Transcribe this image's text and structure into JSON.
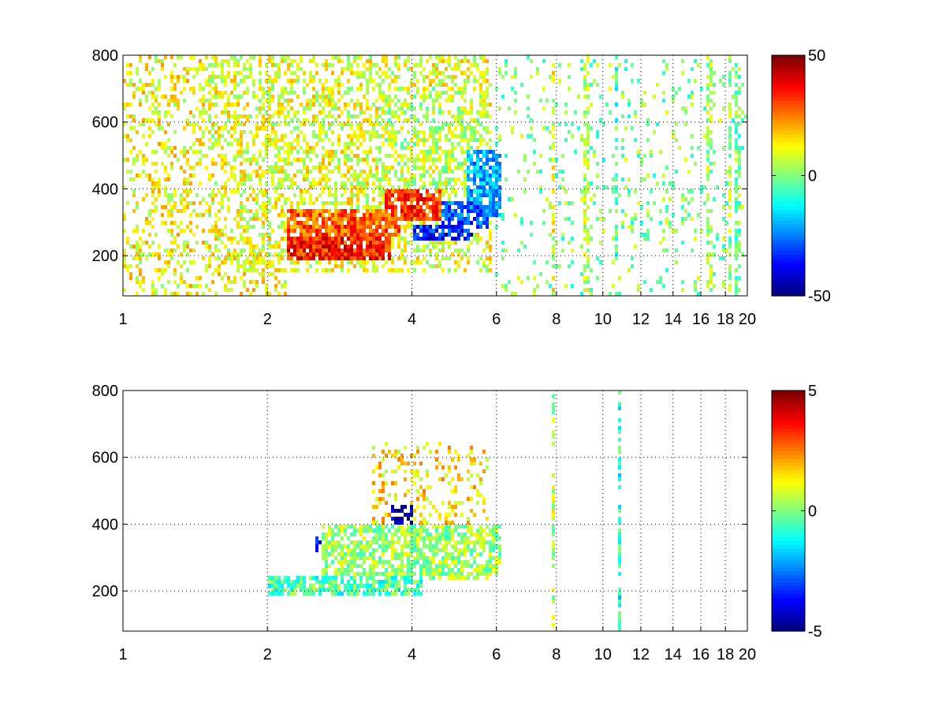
{
  "chart_data": [
    {
      "type": "heatmap",
      "title": "",
      "xlabel": "",
      "ylabel": "",
      "xlim": [
        1,
        20
      ],
      "ylim": [
        80,
        800
      ],
      "x_scale": "log",
      "grid": true,
      "x_ticks": [
        1,
        2,
        4,
        6,
        8,
        10,
        12,
        14,
        16,
        18,
        20
      ],
      "x_tick_labels": [
        "1",
        "2",
        "4",
        "6",
        "8",
        "10",
        "12",
        "14",
        "16",
        "18",
        "20"
      ],
      "y_ticks": [
        200,
        400,
        600,
        800
      ],
      "y_tick_labels": [
        "200",
        "400",
        "600",
        "800"
      ],
      "colorbar": {
        "colormap": "jet",
        "min": -50,
        "max": 50,
        "ticks": [
          -50,
          0,
          50
        ],
        "tick_labels": [
          "-50",
          "0",
          "50"
        ]
      },
      "regions": [
        {
          "x": [
            2.2,
            3.6
          ],
          "y": [
            190,
            260
          ],
          "value": 35,
          "density": 0.9
        },
        {
          "x": [
            2.2,
            3.8
          ],
          "y": [
            260,
            340
          ],
          "value": 28,
          "density": 0.85
        },
        {
          "x": [
            3.5,
            4.6
          ],
          "y": [
            300,
            400
          ],
          "value": 32,
          "density": 0.85
        },
        {
          "x": [
            4.0,
            5.4
          ],
          "y": [
            240,
            290
          ],
          "value": -35,
          "density": 0.85
        },
        {
          "x": [
            4.6,
            5.8
          ],
          "y": [
            280,
            360
          ],
          "value": -28,
          "density": 0.8
        },
        {
          "x": [
            5.2,
            6.1
          ],
          "y": [
            320,
            520
          ],
          "value": -20,
          "density": 0.8
        },
        {
          "x": [
            1.5,
            5.9
          ],
          "y": [
            150,
            800
          ],
          "value": 10,
          "density": 0.45
        },
        {
          "x": [
            3.4,
            5.8
          ],
          "y": [
            400,
            700
          ],
          "value": 6,
          "density": 0.5
        },
        {
          "x": [
            1.0,
            2.2
          ],
          "y": [
            80,
            800
          ],
          "value": 12,
          "density": 0.3
        },
        {
          "x": [
            6.0,
            20.0
          ],
          "y": [
            80,
            800
          ],
          "value": 0,
          "density": 0.1
        }
      ],
      "vertical_stripes": [
        {
          "x": 7.9,
          "width": 0.12,
          "value": 10
        },
        {
          "x": 9.2,
          "width": 0.25,
          "value": 5
        },
        {
          "x": 10.7,
          "width": 0.15,
          "value": -5
        },
        {
          "x": 16.7,
          "width": 0.3,
          "value": 4
        },
        {
          "x": 18.5,
          "width": 0.3,
          "value": 3
        },
        {
          "x": 19.2,
          "width": 0.5,
          "value": -2
        }
      ]
    },
    {
      "type": "heatmap",
      "title": "",
      "xlabel": "",
      "ylabel": "",
      "xlim": [
        1,
        20
      ],
      "ylim": [
        80,
        800
      ],
      "x_scale": "log",
      "grid": true,
      "x_ticks": [
        1,
        2,
        4,
        6,
        8,
        10,
        12,
        14,
        16,
        18,
        20
      ],
      "x_tick_labels": [
        "1",
        "2",
        "4",
        "6",
        "8",
        "10",
        "12",
        "14",
        "16",
        "18",
        "20"
      ],
      "y_ticks": [
        200,
        400,
        600,
        800
      ],
      "y_tick_labels": [
        "200",
        "400",
        "600",
        "800"
      ],
      "colorbar": {
        "colormap": "jet",
        "min": -5,
        "max": 5,
        "ticks": [
          -5,
          0,
          5
        ],
        "tick_labels": [
          "-5",
          "0",
          "5"
        ]
      },
      "regions": [
        {
          "x": [
            2.0,
            4.2
          ],
          "y": [
            190,
            240
          ],
          "value": -0.5,
          "density": 0.7
        },
        {
          "x": [
            2.6,
            6.1
          ],
          "y": [
            230,
            400
          ],
          "value": 0.3,
          "density": 0.7
        },
        {
          "x": [
            2.8,
            6.1
          ],
          "y": [
            240,
            380
          ],
          "value": 1.2,
          "density": 0.45
        },
        {
          "x": [
            3.6,
            4.0
          ],
          "y": [
            400,
            460
          ],
          "value": -4.5,
          "density": 0.6
        },
        {
          "x": [
            2.5,
            3.2
          ],
          "y": [
            320,
            360
          ],
          "value": -4,
          "density": 0.4
        },
        {
          "x": [
            3.3,
            5.8
          ],
          "y": [
            400,
            650
          ],
          "value": 1.5,
          "density": 0.25
        }
      ],
      "vertical_stripes": [
        {
          "x": 7.9,
          "width": 0.08,
          "value": 0.5
        },
        {
          "x": 10.8,
          "width": 0.08,
          "value": -1
        }
      ]
    }
  ]
}
